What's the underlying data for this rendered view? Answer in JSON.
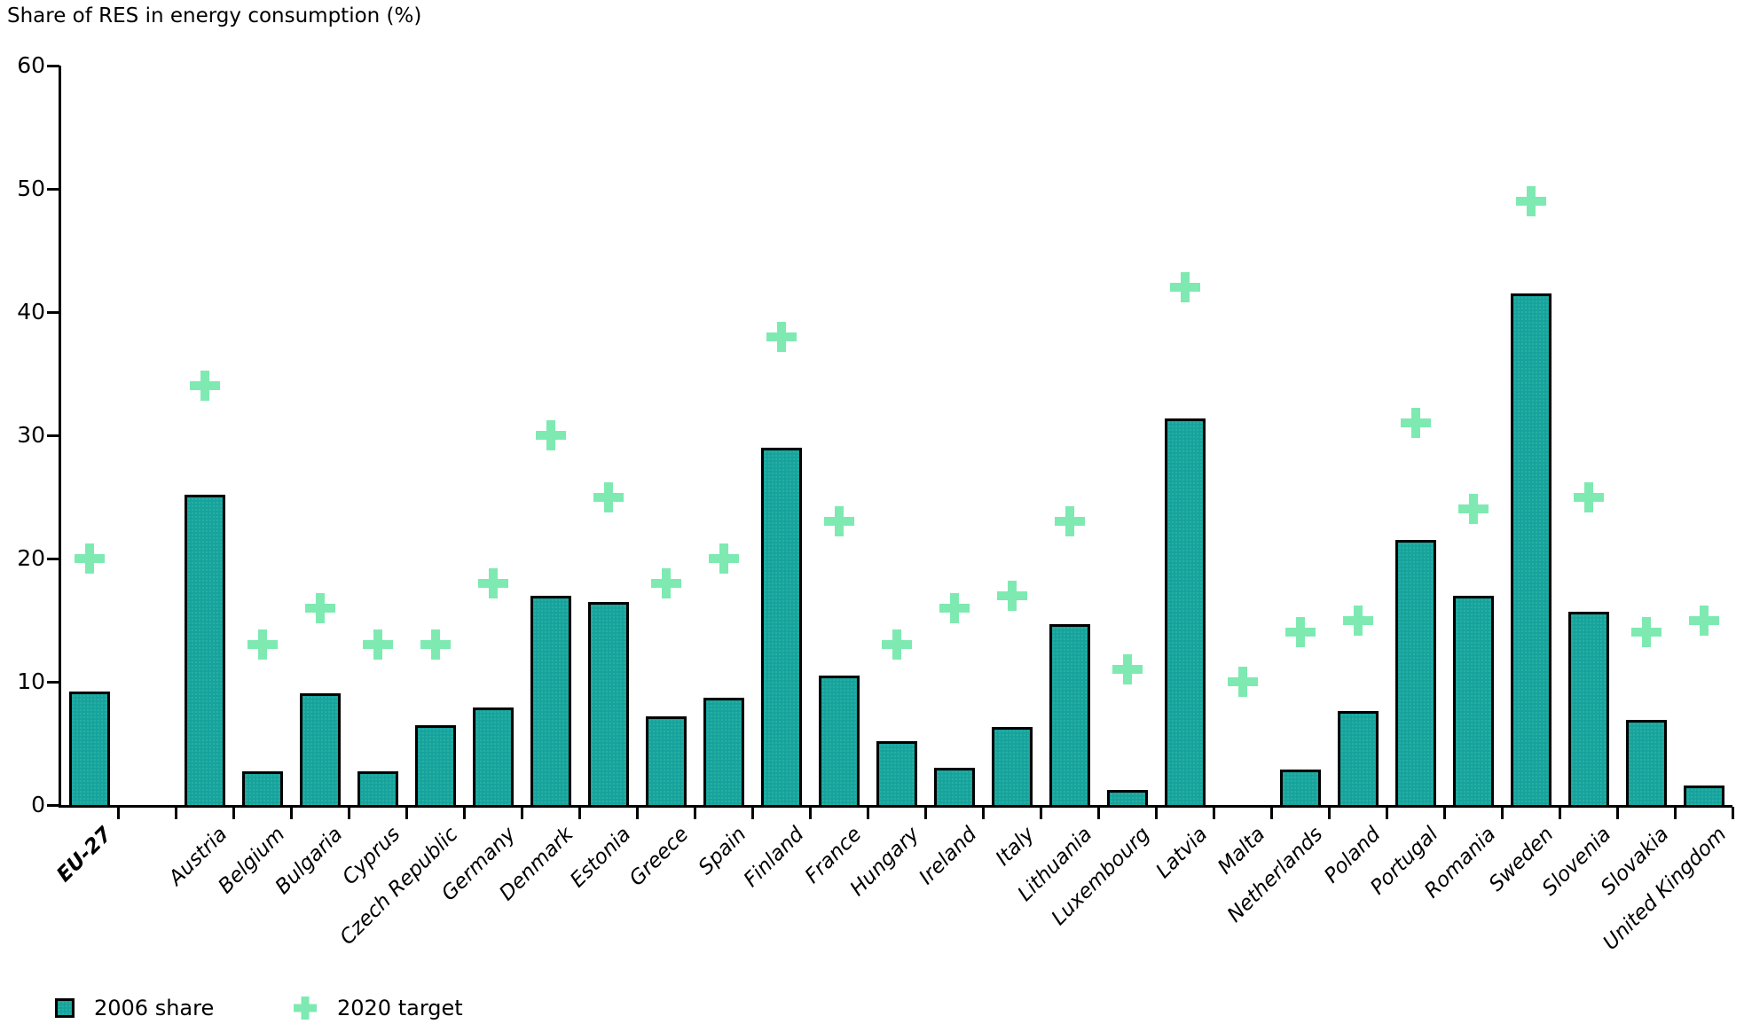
{
  "title": "Share of RES in energy consumption (%)",
  "legend": {
    "share_label": "2006 share",
    "target_label": "2020 target"
  },
  "colors": {
    "bar": "#17a39d",
    "bar_border": "#000000",
    "marker": "#7eeab2",
    "axis": "#000000"
  },
  "y_axis": {
    "ticks": [
      0,
      10,
      20,
      30,
      40,
      50,
      60
    ],
    "max": 60
  },
  "chart_data": {
    "type": "bar",
    "title": "Share of RES in energy consumption (%)",
    "xlabel": "",
    "ylabel": "Share of RES in energy consumption (%)",
    "ylim": [
      0,
      60
    ],
    "grid": false,
    "legend_position": "bottom-left",
    "marker_style": "plus",
    "gap_after_first_category": true,
    "categories": [
      "EU-27",
      "Austria",
      "Belgium",
      "Bulgaria",
      "Cyprus",
      "Czech Republic",
      "Germany",
      "Denmark",
      "Estonia",
      "Greece",
      "Spain",
      "Finland",
      "France",
      "Hungary",
      "Ireland",
      "Italy",
      "Lithuania",
      "Luxembourg",
      "Latvia",
      "Malta",
      "Netherlands",
      "Poland",
      "Portugal",
      "Romania",
      "Sweden",
      "Slovenia",
      "Slovakia",
      "United Kingdom"
    ],
    "series": [
      {
        "name": "2006 share",
        "type": "bar",
        "values": [
          9.2,
          25.2,
          2.7,
          9.1,
          2.7,
          6.5,
          7.9,
          17.0,
          16.5,
          7.2,
          8.7,
          29.0,
          10.5,
          5.2,
          3.0,
          6.3,
          14.7,
          1.2,
          31.4,
          0.0,
          2.9,
          7.6,
          21.5,
          17.0,
          41.5,
          15.7,
          6.9,
          1.6
        ]
      },
      {
        "name": "2020 target",
        "type": "plus-marker",
        "values": [
          20,
          34,
          13,
          16,
          13,
          13,
          18,
          30,
          25,
          18,
          20,
          38,
          23,
          13,
          16,
          17,
          23,
          11,
          42,
          10,
          14,
          15,
          31,
          24,
          49,
          25,
          14,
          15
        ]
      }
    ]
  }
}
